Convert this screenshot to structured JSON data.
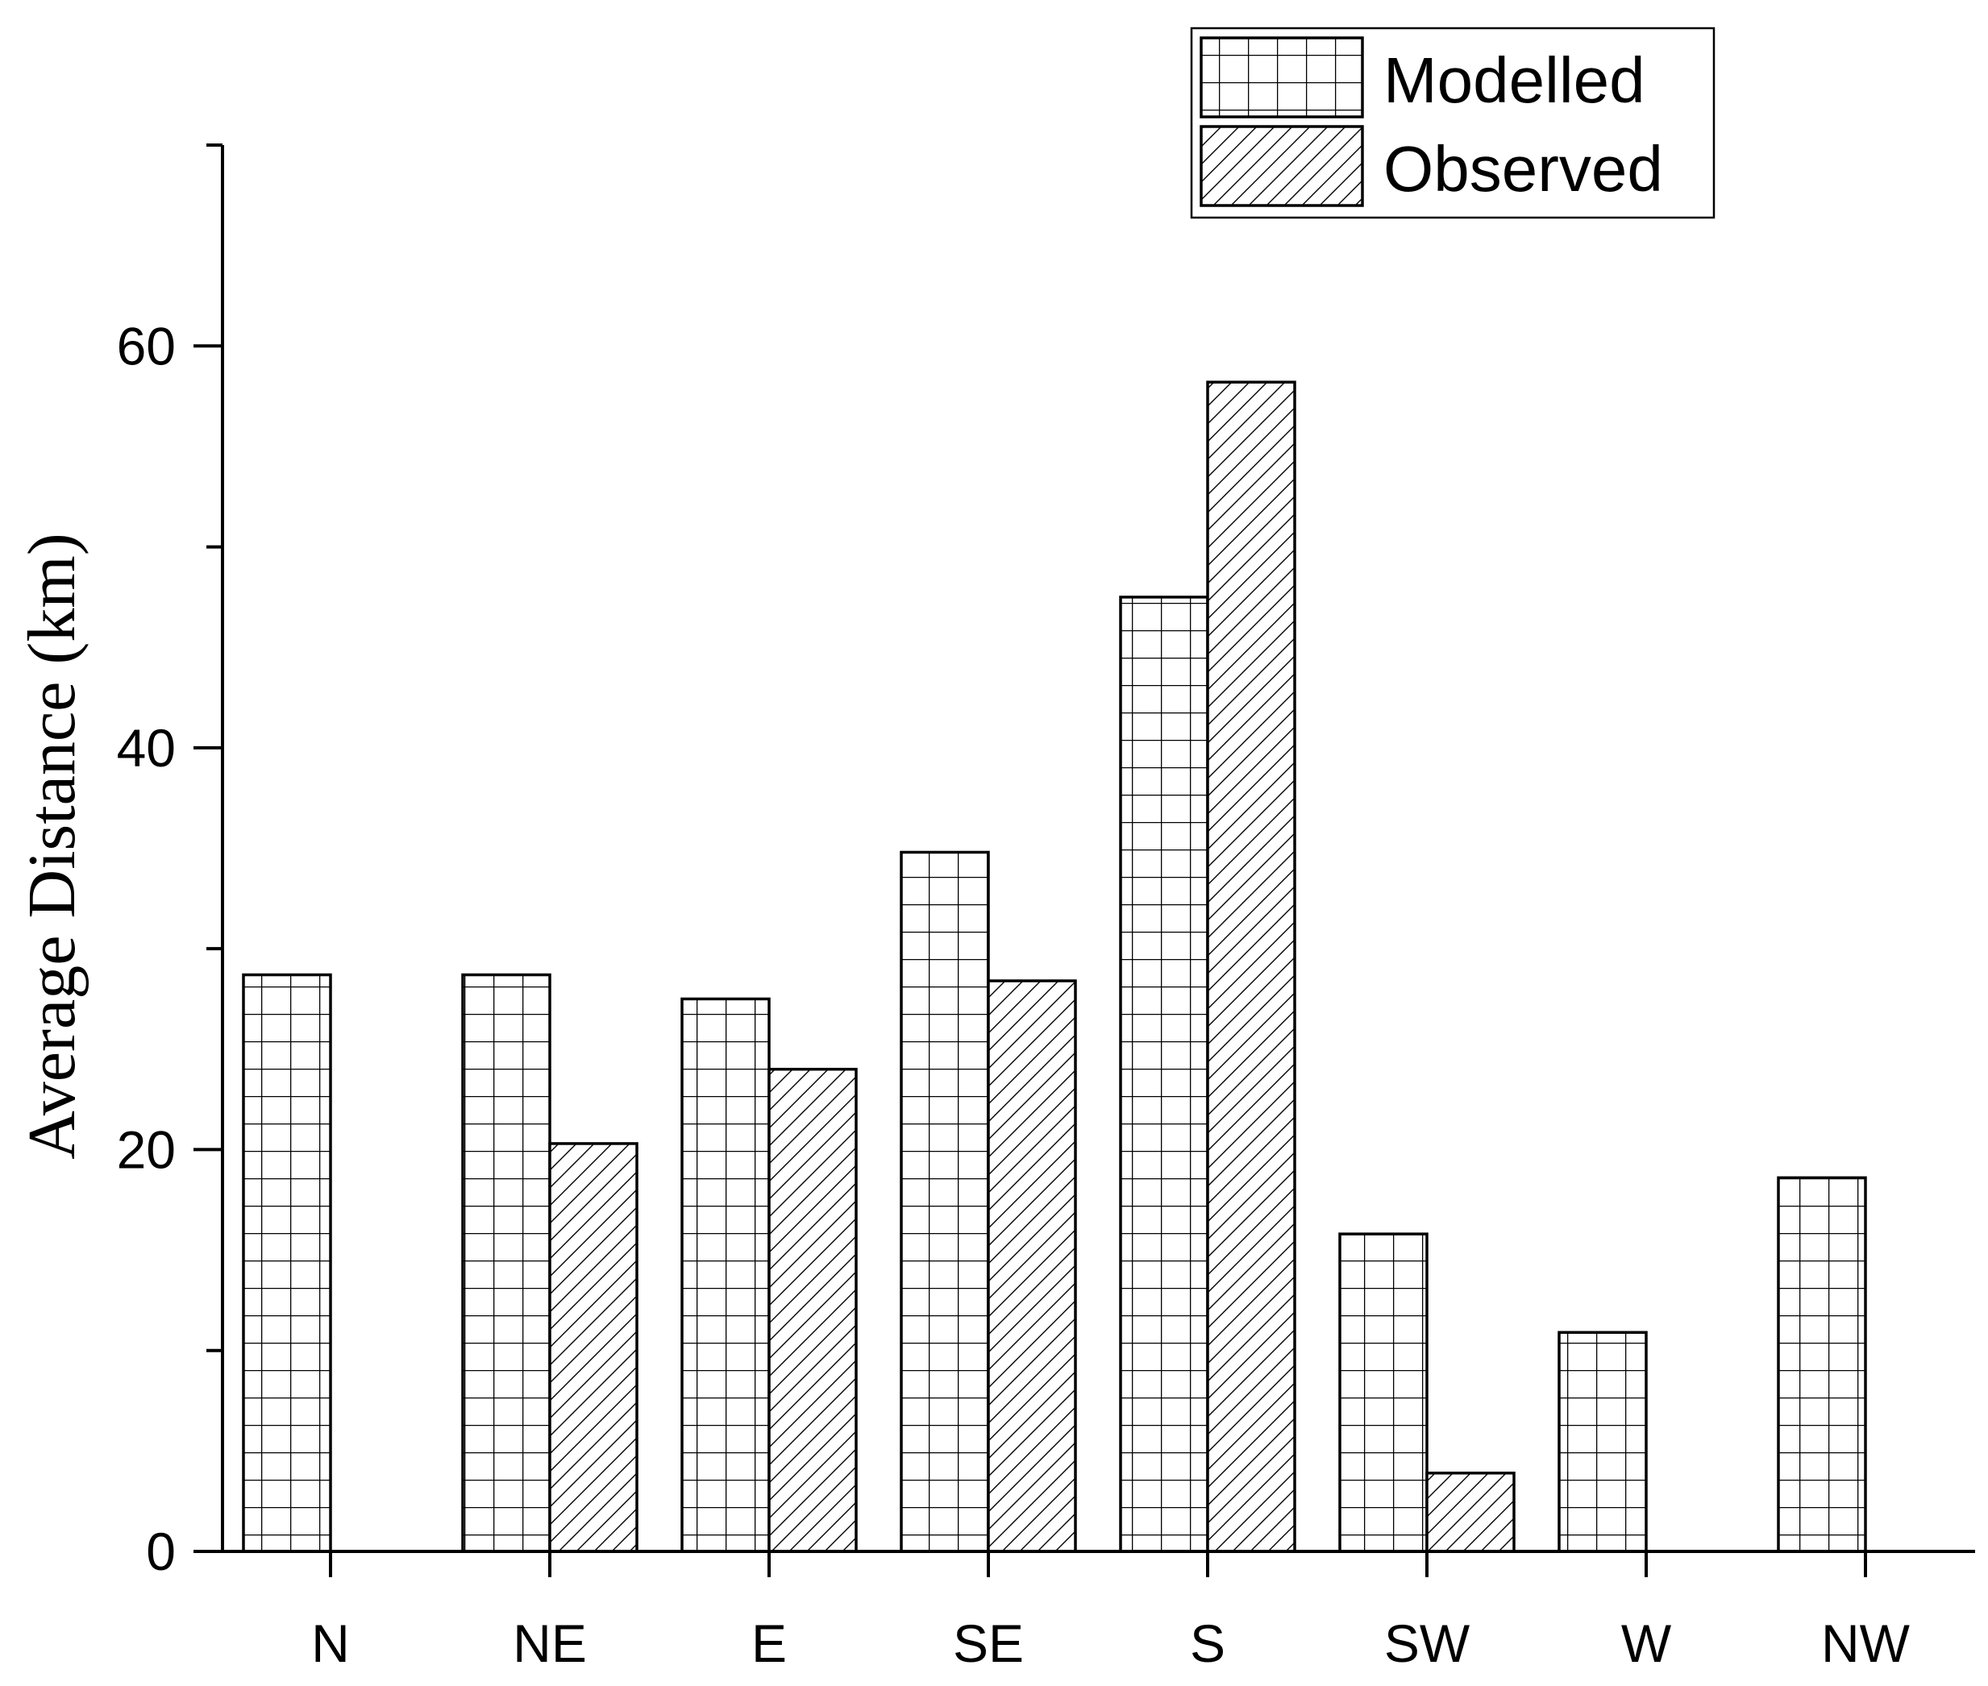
{
  "chart_data": {
    "type": "bar",
    "title": "",
    "xlabel": "",
    "ylabel": "Average Distance (km)",
    "categories": [
      "N",
      "NE",
      "E",
      "SE",
      "S",
      "SW",
      "W",
      "NW"
    ],
    "series": [
      {
        "name": "Modelled",
        "pattern": "grid",
        "values": [
          28.7,
          28.7,
          27.5,
          34.8,
          47.5,
          15.8,
          10.9,
          18.6
        ]
      },
      {
        "name": "Observed",
        "pattern": "diagonal-hatch",
        "values": [
          null,
          20.3,
          24.0,
          28.4,
          58.2,
          3.9,
          null,
          null
        ]
      }
    ],
    "ylim": [
      0,
      70
    ],
    "yticks": [
      0,
      20,
      40,
      60
    ],
    "ytick_labels": [
      "0",
      "20",
      "40",
      "60"
    ],
    "minor_yticks": [
      10,
      30,
      50,
      70
    ],
    "grid": false,
    "legend_position": "top-right",
    "colors": {
      "stroke": "#000000",
      "fill": "#ffffff",
      "pattern_line": "#000000"
    }
  }
}
